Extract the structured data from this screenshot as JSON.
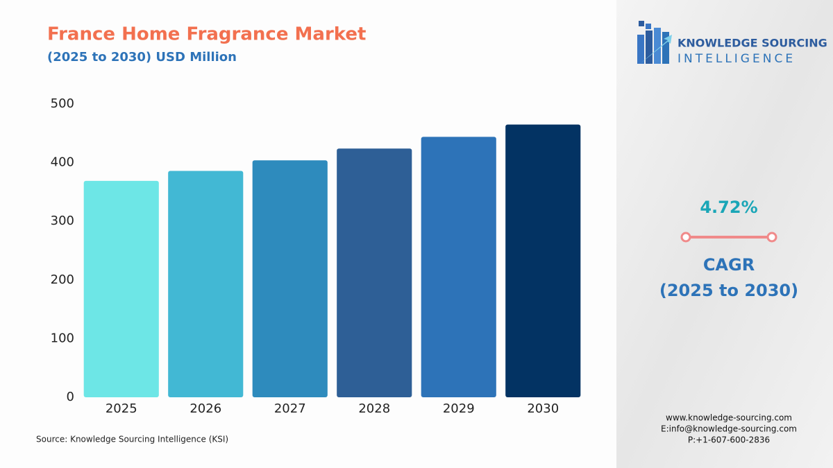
{
  "chart_data": {
    "type": "bar",
    "title": "France Home Fragrance Market",
    "subtitle": "(2025 to 2030) USD Million",
    "categories": [
      "2025",
      "2026",
      "2027",
      "2028",
      "2029",
      "2030"
    ],
    "values": [
      369,
      386,
      404,
      424,
      444,
      465
    ],
    "colors": [
      "#6de6e6",
      "#42b8d4",
      "#2e8bbd",
      "#2e5f96",
      "#2d73b8",
      "#033363"
    ],
    "ylim": [
      0,
      500
    ],
    "yticks": [
      0,
      100,
      200,
      300,
      400,
      500
    ],
    "grid": false,
    "source": "Source: Knowledge Sourcing Intelligence (KSI)"
  },
  "logo": {
    "line1": "KNOWLEDGE SOURCING",
    "line2": "INTELLIGENCE"
  },
  "cagr": {
    "rate": "4.72%",
    "label": "CAGR",
    "period": "(2025 to 2030)"
  },
  "contact": [
    "www.knowledge-sourcing.com",
    "E:info@knowledge-sourcing.com",
    "P:+1-607-600-2836"
  ]
}
